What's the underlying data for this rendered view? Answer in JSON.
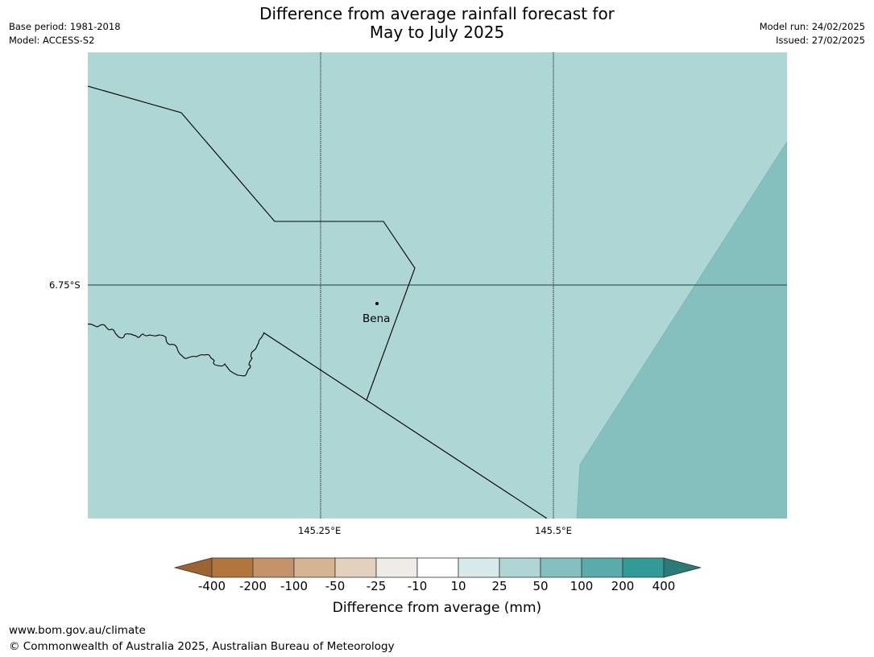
{
  "title_line1": "Difference from average rainfall forecast for",
  "title_line2": "May to July 2025",
  "meta_left": {
    "base_period": "Base period: 1981-2018",
    "model": "Model: ACCESS-S2"
  },
  "meta_right": {
    "model_run": "Model run: 24/02/2025",
    "issued": "Issued: 27/02/2025"
  },
  "map": {
    "lat_label": "6.75°S",
    "lon_labels": [
      "145.25°E",
      "145.5°E"
    ],
    "place": "Bena",
    "colors": {
      "base_fill": "#aed6d5",
      "high_fill": "#85c0bf",
      "border": "#000000",
      "graticule": "#000000"
    }
  },
  "legend": {
    "title": "Difference from average (mm)",
    "tick_labels": [
      "-400",
      "-200",
      "-100",
      "-50",
      "-25",
      "-10",
      "10",
      "25",
      "50",
      "100",
      "200",
      "400"
    ],
    "colors": [
      "#9c6433",
      "#b1763e",
      "#c4936a",
      "#d6b393",
      "#e4d0bf",
      "#efebe6",
      "#ffffff",
      "#d7eae9",
      "#aed6d5",
      "#85c0bf",
      "#5aacac",
      "#339a98",
      "#2a7a78"
    ]
  },
  "footer": {
    "url": "www.bom.gov.au/climate",
    "copyright": "© Commonwealth of Australia 2025, Australian Bureau of Meteorology"
  }
}
